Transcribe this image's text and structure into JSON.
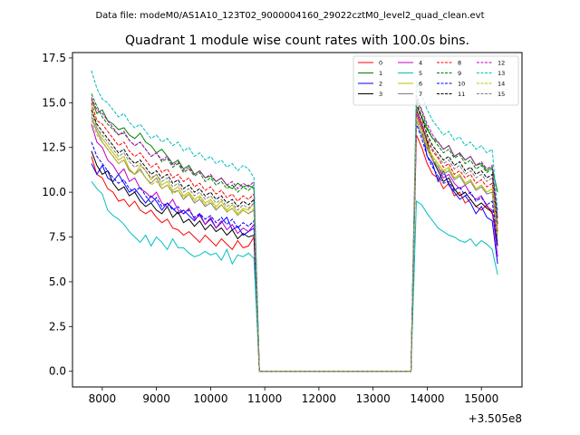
{
  "suptitle": "Data file: modeM0/AS1A10_123T02_9000004160_29022cztM0_level2_quad_clean.evt",
  "chart_data": {
    "type": "line",
    "title": "Quadrant 1 module wise count rates with 100.0s bins.",
    "xlabel": "",
    "ylabel": "",
    "x_offset_label": "+3.505e8",
    "xlim": [
      7450,
      15750
    ],
    "ylim": [
      -0.875,
      17.8
    ],
    "xticks": [
      8000,
      9000,
      10000,
      11000,
      12000,
      13000,
      14000,
      15000
    ],
    "xtick_labels": [
      "8000",
      "9000",
      "10000",
      "11000",
      "12000",
      "13000",
      "14000",
      "15000"
    ],
    "yticks": [
      0.0,
      2.5,
      5.0,
      7.5,
      10.0,
      12.5,
      15.0,
      17.5
    ],
    "ytick_labels": [
      "0.0",
      "2.5",
      "5.0",
      "7.5",
      "10.0",
      "12.5",
      "15.0",
      "17.5"
    ],
    "legend_position": "top-right",
    "x": [
      7800,
      7900,
      8000,
      8100,
      8200,
      8300,
      8400,
      8500,
      8600,
      8700,
      8800,
      8900,
      9000,
      9100,
      9200,
      9300,
      9400,
      9500,
      9600,
      9700,
      9800,
      9900,
      10000,
      10100,
      10200,
      10300,
      10400,
      10500,
      10600,
      10700,
      10800,
      10900,
      11000,
      11100,
      11200,
      11300,
      11400,
      11500,
      11600,
      11700,
      11800,
      11900,
      12000,
      12100,
      12200,
      12300,
      12400,
      12500,
      12600,
      12700,
      12800,
      12900,
      13000,
      13100,
      13200,
      13300,
      13400,
      13500,
      13600,
      13700,
      13800,
      13900,
      14000,
      14100,
      14200,
      14300,
      14400,
      14500,
      14600,
      14700,
      14800,
      14900,
      15000,
      15100,
      15200,
      15300
    ],
    "series": [
      {
        "name": "0",
        "color": "#ff0000",
        "dash": "solid",
        "seg1": [
          12.0,
          11.0,
          10.8,
          10.2,
          10.0,
          9.5,
          9.6,
          9.2,
          9.5,
          9.0,
          8.8,
          9.0,
          8.6,
          8.3,
          8.5,
          8.0,
          7.9,
          7.6,
          7.8,
          7.5,
          7.2,
          7.6,
          7.3,
          7.0,
          7.4,
          7.1,
          6.8,
          7.3,
          6.9,
          7.0,
          7.5
        ],
        "seg2": [
          13.2,
          12.5,
          11.6,
          11.0,
          10.8,
          10.2,
          10.5,
          9.8,
          10.0,
          9.4,
          9.6,
          9.2,
          9.0,
          9.3,
          8.8,
          7.8
        ]
      },
      {
        "name": "1",
        "color": "#008000",
        "dash": "solid",
        "seg1": [
          15.2,
          14.4,
          14.6,
          14.0,
          13.8,
          13.5,
          13.6,
          13.2,
          13.0,
          13.3,
          12.8,
          12.6,
          12.2,
          12.4,
          12.0,
          11.6,
          11.8,
          11.3,
          11.5,
          11.0,
          11.2,
          10.8,
          10.9,
          10.6,
          10.8,
          10.4,
          10.2,
          10.5,
          10.3,
          10.4,
          10.2
        ],
        "seg2": [
          14.8,
          14.2,
          13.5,
          13.0,
          12.8,
          12.4,
          12.6,
          12.0,
          12.2,
          11.8,
          12.0,
          11.5,
          11.6,
          11.2,
          11.4,
          10.0
        ]
      },
      {
        "name": "2",
        "color": "#0000ff",
        "dash": "solid",
        "seg1": [
          11.6,
          11.0,
          11.5,
          10.8,
          10.6,
          11.0,
          10.5,
          10.0,
          10.2,
          9.8,
          9.4,
          9.8,
          9.5,
          9.0,
          9.4,
          9.1,
          8.8,
          9.0,
          8.7,
          8.4,
          8.8,
          8.2,
          8.5,
          8.0,
          8.3,
          8.6,
          7.9,
          8.1,
          7.6,
          7.8,
          8.0
        ],
        "seg2": [
          14.2,
          13.5,
          12.0,
          11.6,
          10.6,
          11.2,
          10.4,
          10.0,
          9.6,
          9.8,
          9.4,
          8.8,
          9.2,
          8.6,
          8.4,
          6.0
        ]
      },
      {
        "name": "3",
        "color": "#000000",
        "dash": "solid",
        "seg1": [
          12.3,
          11.5,
          11.0,
          11.2,
          10.5,
          10.1,
          10.3,
          9.8,
          10.0,
          9.5,
          9.2,
          9.4,
          9.0,
          8.8,
          9.2,
          8.6,
          8.9,
          8.3,
          8.5,
          8.1,
          8.4,
          7.9,
          8.2,
          7.8,
          8.0,
          7.6,
          7.9,
          7.4,
          7.7,
          7.5,
          7.6
        ],
        "seg2": [
          14.6,
          13.8,
          12.8,
          11.8,
          11.2,
          10.6,
          10.8,
          10.2,
          9.8,
          10.0,
          9.6,
          9.2,
          9.4,
          9.1,
          8.9,
          7.0
        ]
      },
      {
        "name": "4",
        "color": "#bf00bf",
        "dash": "solid",
        "seg1": [
          13.8,
          12.8,
          12.5,
          11.8,
          11.5,
          11.0,
          11.3,
          10.6,
          10.8,
          10.2,
          10.0,
          9.7,
          10.0,
          9.4,
          9.2,
          9.6,
          9.0,
          8.8,
          9.1,
          8.5,
          8.7,
          8.2,
          8.6,
          8.0,
          8.4,
          7.9,
          8.2,
          7.7,
          8.0,
          7.8,
          8.2
        ],
        "seg2": [
          14.4,
          13.6,
          12.5,
          11.8,
          11.4,
          10.8,
          11.0,
          10.5,
          10.2,
          10.4,
          9.9,
          9.6,
          9.8,
          9.2,
          9.0,
          6.4
        ]
      },
      {
        "name": "5",
        "color": "#00bfbf",
        "dash": "solid",
        "seg1": [
          10.6,
          10.2,
          9.9,
          9.0,
          8.7,
          8.5,
          8.2,
          7.8,
          7.5,
          7.2,
          7.6,
          7.0,
          7.5,
          7.2,
          6.8,
          7.4,
          6.9,
          6.9,
          6.6,
          6.4,
          6.5,
          6.7,
          6.5,
          6.6,
          6.2,
          6.8,
          6.0,
          6.5,
          6.4,
          6.6,
          6.3
        ],
        "seg2": [
          9.5,
          9.3,
          8.8,
          8.4,
          8.0,
          7.8,
          7.6,
          7.5,
          7.3,
          7.2,
          7.4,
          7.0,
          7.3,
          7.1,
          6.8,
          5.4
        ]
      },
      {
        "name": "6",
        "color": "#bfbf00",
        "dash": "solid",
        "seg1": [
          14.8,
          13.6,
          13.0,
          12.6,
          12.2,
          11.8,
          12.0,
          11.3,
          11.0,
          11.5,
          11.2,
          10.7,
          11.0,
          10.4,
          10.6,
          10.1,
          10.3,
          9.8,
          10.0,
          9.6,
          9.8,
          9.4,
          9.6,
          9.2,
          9.5,
          9.0,
          9.3,
          8.8,
          9.1,
          9.0,
          9.4
        ],
        "seg2": [
          14.2,
          13.5,
          12.6,
          12.0,
          11.6,
          11.2,
          11.4,
          10.8,
          11.0,
          10.5,
          10.7,
          10.2,
          10.4,
          10.0,
          10.2,
          7.5
        ]
      },
      {
        "name": "7",
        "color": "#808080",
        "dash": "solid",
        "seg1": [
          14.2,
          13.4,
          12.8,
          12.4,
          12.0,
          11.6,
          11.8,
          11.2,
          11.0,
          11.3,
          10.8,
          10.5,
          10.8,
          10.2,
          10.4,
          10.0,
          10.1,
          9.6,
          9.9,
          9.4,
          9.6,
          9.2,
          9.4,
          9.0,
          9.3,
          8.9,
          9.1,
          8.7,
          9.0,
          8.8,
          9.0
        ],
        "seg2": [
          14.0,
          13.2,
          12.4,
          11.8,
          11.4,
          11.0,
          11.2,
          10.7,
          10.9,
          10.4,
          10.6,
          10.1,
          10.3,
          9.9,
          10.0,
          7.2
        ]
      },
      {
        "name": "8",
        "color": "#ff0000",
        "dash": "dashed",
        "seg1": [
          15.0,
          14.0,
          13.8,
          13.4,
          13.0,
          12.6,
          12.8,
          12.3,
          12.0,
          12.2,
          11.8,
          11.4,
          11.6,
          11.1,
          11.3,
          10.8,
          11.0,
          10.6,
          10.8,
          10.3,
          10.5,
          10.1,
          10.3,
          9.9,
          10.1,
          9.7,
          9.9,
          9.5,
          9.8,
          9.6,
          9.9
        ],
        "seg2": [
          14.6,
          13.8,
          12.9,
          12.3,
          11.9,
          11.4,
          11.6,
          11.0,
          11.2,
          10.8,
          11.0,
          10.5,
          10.7,
          10.3,
          10.5,
          7.8
        ]
      },
      {
        "name": "9",
        "color": "#008000",
        "dash": "dashed",
        "seg1": [
          15.5,
          14.8,
          14.2,
          13.8,
          13.5,
          13.2,
          13.3,
          12.9,
          12.6,
          12.8,
          12.4,
          12.0,
          12.2,
          11.7,
          11.9,
          11.4,
          11.6,
          11.1,
          11.3,
          10.9,
          11.1,
          10.6,
          10.8,
          10.4,
          10.6,
          10.2,
          10.4,
          10.0,
          10.3,
          10.1,
          10.4
        ],
        "seg2": [
          15.2,
          14.5,
          13.6,
          13.0,
          12.6,
          12.2,
          12.4,
          11.9,
          12.1,
          11.6,
          11.8,
          11.3,
          11.5,
          11.1,
          11.3,
          8.5
        ]
      },
      {
        "name": "10",
        "color": "#0000ff",
        "dash": "dashed",
        "seg1": [
          12.8,
          12.0,
          11.6,
          11.2,
          10.8,
          10.5,
          10.7,
          10.2,
          10.0,
          10.3,
          9.8,
          9.4,
          9.7,
          9.2,
          9.4,
          9.0,
          9.2,
          8.8,
          9.0,
          8.6,
          8.8,
          8.5,
          8.7,
          8.3,
          8.6,
          8.2,
          8.5,
          8.0,
          8.3,
          8.1,
          8.4
        ],
        "seg2": [
          13.8,
          13.0,
          12.0,
          11.4,
          10.9,
          10.5,
          10.6,
          10.1,
          10.3,
          9.8,
          10.0,
          9.5,
          9.7,
          9.3,
          9.5,
          7.0
        ]
      },
      {
        "name": "11",
        "color": "#000000",
        "dash": "dashed",
        "seg1": [
          14.6,
          13.8,
          13.4,
          13.0,
          12.6,
          12.2,
          12.4,
          11.9,
          11.6,
          11.8,
          11.4,
          11.0,
          11.2,
          10.8,
          11.0,
          10.5,
          10.7,
          10.2,
          10.4,
          10.0,
          10.2,
          9.8,
          10.0,
          9.6,
          9.8,
          9.4,
          9.6,
          9.2,
          9.5,
          9.3,
          9.6
        ],
        "seg2": [
          15.0,
          14.2,
          13.2,
          12.6,
          12.2,
          11.8,
          12.0,
          11.5,
          11.7,
          11.2,
          11.4,
          11.0,
          11.2,
          10.8,
          11.0,
          8.2
        ]
      },
      {
        "name": "12",
        "color": "#bf00bf",
        "dash": "dashed",
        "seg1": [
          15.3,
          14.6,
          14.4,
          14.0,
          13.6,
          13.2,
          13.4,
          12.9,
          12.6,
          12.8,
          12.4,
          12.0,
          12.2,
          11.8,
          12.0,
          11.5,
          11.7,
          11.2,
          11.4,
          11.0,
          11.2,
          10.8,
          11.0,
          10.6,
          10.8,
          10.4,
          10.6,
          10.2,
          10.5,
          10.3,
          10.6
        ],
        "seg2": [
          15.4,
          14.6,
          13.8,
          13.2,
          12.8,
          12.4,
          12.6,
          12.0,
          12.2,
          11.8,
          12.0,
          11.5,
          11.7,
          11.3,
          11.5,
          8.6
        ]
      },
      {
        "name": "13",
        "color": "#00bfbf",
        "dash": "dashed",
        "seg1": [
          16.8,
          15.8,
          15.2,
          15.0,
          14.6,
          14.2,
          14.4,
          13.9,
          13.6,
          13.8,
          13.4,
          13.0,
          13.2,
          12.8,
          13.0,
          12.6,
          12.8,
          12.3,
          12.5,
          12.0,
          12.2,
          11.8,
          12.0,
          11.6,
          11.8,
          11.4,
          11.6,
          11.2,
          11.5,
          11.3,
          10.8
        ],
        "seg2": [
          16.2,
          15.4,
          14.6,
          14.0,
          13.6,
          13.2,
          13.4,
          12.9,
          13.1,
          12.6,
          12.8,
          12.4,
          12.6,
          12.2,
          12.4,
          9.0
        ]
      },
      {
        "name": "14",
        "color": "#bfbf00",
        "dash": "dashed",
        "seg1": [
          14.0,
          13.2,
          12.8,
          12.4,
          12.0,
          11.6,
          11.8,
          11.3,
          11.0,
          11.2,
          10.8,
          10.4,
          10.6,
          10.2,
          10.4,
          9.9,
          10.1,
          9.7,
          9.9,
          9.5,
          9.7,
          9.3,
          9.5,
          9.1,
          9.3,
          8.9,
          9.1,
          8.7,
          9.0,
          8.8,
          9.1
        ],
        "seg2": [
          14.2,
          13.4,
          12.5,
          11.9,
          11.5,
          11.1,
          11.3,
          10.8,
          11.0,
          10.5,
          10.7,
          10.2,
          10.4,
          10.0,
          10.2,
          7.6
        ]
      },
      {
        "name": "15",
        "color": "#808080",
        "dash": "dashed",
        "seg1": [
          14.4,
          13.6,
          13.2,
          12.8,
          12.4,
          12.0,
          12.2,
          11.7,
          11.4,
          11.6,
          11.2,
          10.8,
          11.0,
          10.6,
          10.8,
          10.3,
          10.5,
          10.0,
          10.2,
          9.8,
          10.0,
          9.6,
          9.8,
          9.4,
          9.6,
          9.2,
          9.4,
          9.0,
          9.3,
          9.1,
          9.4
        ],
        "seg2": [
          14.8,
          14.0,
          13.0,
          12.4,
          12.0,
          11.6,
          11.8,
          11.3,
          11.5,
          11.0,
          11.2,
          10.8,
          11.0,
          10.6,
          10.8,
          8.0
        ]
      }
    ]
  }
}
